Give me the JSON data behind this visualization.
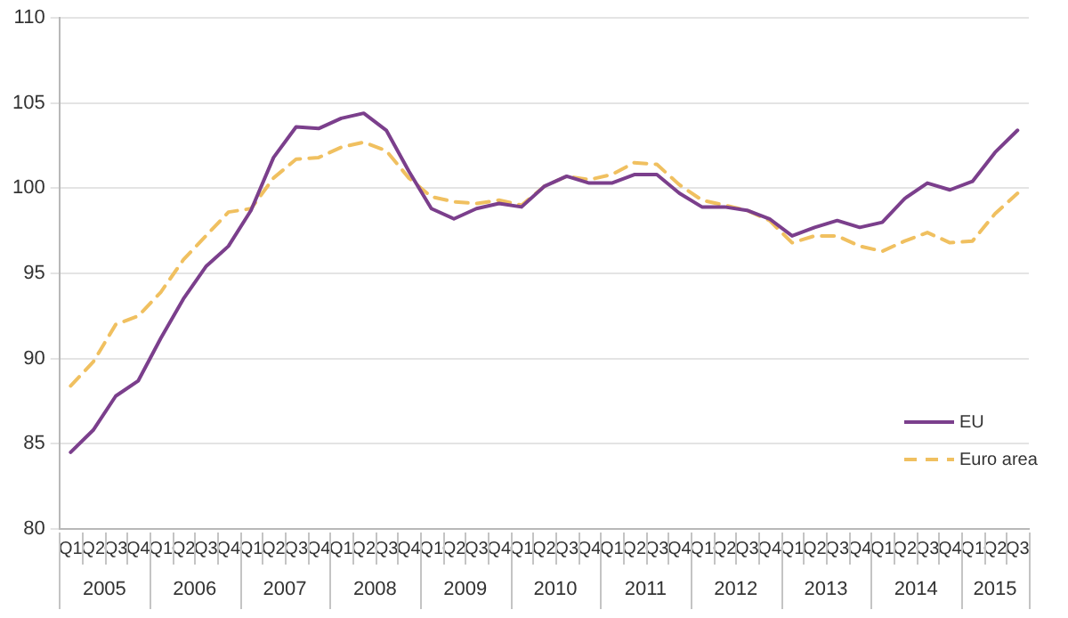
{
  "chart_data": {
    "type": "line",
    "categories": [
      "Q1",
      "Q2",
      "Q3",
      "Q4",
      "Q1",
      "Q2",
      "Q3",
      "Q4",
      "Q1",
      "Q2",
      "Q3",
      "Q4",
      "Q1",
      "Q2",
      "Q3",
      "Q4",
      "Q1",
      "Q2",
      "Q3",
      "Q4",
      "Q1",
      "Q2",
      "Q3",
      "Q4",
      "Q1",
      "Q2",
      "Q3",
      "Q4",
      "Q1",
      "Q2",
      "Q3",
      "Q4",
      "Q1",
      "Q2",
      "Q3",
      "Q4",
      "Q1",
      "Q2",
      "Q3",
      "Q4",
      "Q1",
      "Q2",
      "Q3"
    ],
    "annotations": [
      "2005",
      "2006",
      "2007",
      "2008",
      "2009",
      "2010",
      "2011",
      "2012",
      "2013",
      "2014",
      "2015"
    ],
    "series": [
      {
        "name": "EU",
        "color": "#7b3f8c",
        "line_style": "solid",
        "values": [
          84.5,
          85.8,
          87.8,
          88.7,
          91.2,
          93.5,
          95.4,
          96.6,
          98.7,
          101.8,
          103.6,
          103.5,
          104.1,
          104.4,
          103.4,
          101.0,
          98.8,
          98.2,
          98.8,
          99.1,
          98.9,
          100.1,
          100.7,
          100.3,
          100.3,
          100.8,
          100.8,
          99.7,
          98.9,
          98.9,
          98.7,
          98.2,
          97.2,
          97.7,
          98.1,
          97.7,
          98.0,
          99.4,
          100.3,
          99.9,
          100.4,
          102.1,
          103.4
        ]
      },
      {
        "name": "Euro area",
        "color": "#f0c060",
        "line_style": "dashed",
        "values": [
          88.4,
          89.8,
          92.0,
          92.5,
          93.9,
          95.8,
          97.2,
          98.6,
          98.8,
          100.6,
          101.7,
          101.8,
          102.4,
          102.7,
          102.2,
          100.6,
          99.5,
          99.2,
          99.1,
          99.3,
          99.0,
          100.1,
          100.7,
          100.5,
          100.8,
          101.5,
          101.4,
          100.2,
          99.3,
          99.0,
          98.7,
          98.1,
          96.8,
          97.2,
          97.2,
          96.6,
          96.3,
          96.9,
          97.4,
          96.8,
          96.9,
          98.5,
          99.7
        ]
      }
    ],
    "ylim": [
      80,
      110
    ],
    "yticks": [
      80,
      85,
      90,
      95,
      100,
      105,
      110
    ],
    "grid": "y",
    "legend": "bottom right",
    "marker": "none"
  }
}
